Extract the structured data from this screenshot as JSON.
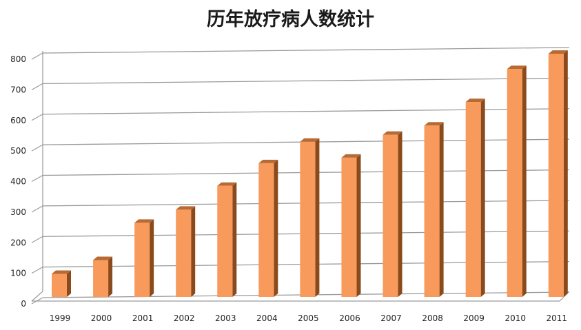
{
  "chart_data": {
    "type": "bar",
    "title": "历年放疗病人数统计",
    "xlabel": "",
    "ylabel": "",
    "categories": [
      "1999",
      "2000",
      "2001",
      "2002",
      "2003",
      "2004",
      "2005",
      "2006",
      "2007",
      "2008",
      "2009",
      "2010",
      "2011"
    ],
    "series": [
      {
        "values": [
          80,
          125,
          247,
          290,
          368,
          442,
          512,
          460,
          535,
          565,
          642,
          750,
          800
        ]
      }
    ],
    "ylim": [
      0,
      800
    ],
    "yticks": [
      0,
      100,
      200,
      300,
      400,
      500,
      600,
      700,
      800
    ],
    "grid": true,
    "legend": "none",
    "style": "3d-column",
    "colors": {
      "bar_front": "#F79A5B",
      "bar_side": "#8A4A1C",
      "bar_top": "#B86A34",
      "grid": "#9A9A9A"
    }
  }
}
